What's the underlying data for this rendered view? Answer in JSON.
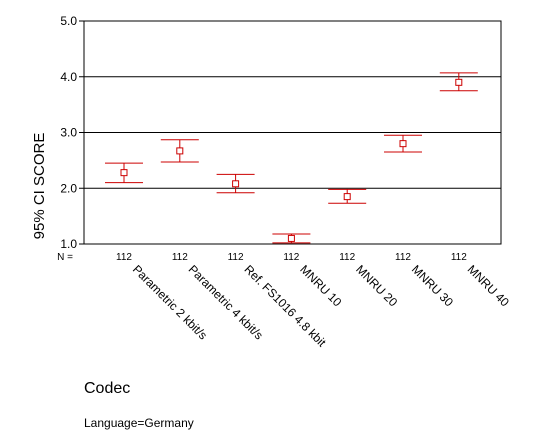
{
  "chart_data": {
    "type": "errorbar",
    "ylabel": "95% CI SCORE",
    "xlabel": "Codec",
    "ylim": [
      1.0,
      5.0
    ],
    "yticks": [
      "1.0",
      "2.0",
      "3.0",
      "4.0",
      "5.0"
    ],
    "gridlines": [
      2.0,
      3.0,
      4.0
    ],
    "n_label": "N =",
    "categories": [
      "Parametric 2 kbit/s",
      "Parametric 4 kbit/s",
      "Ref. FS1016 4.8 kbit",
      "MNRU 10",
      "MNRU 20",
      "MNRU 30",
      "MNRU 40"
    ],
    "n_values": [
      "112",
      "112",
      "112",
      "112",
      "112",
      "112",
      "112"
    ],
    "mean": [
      2.28,
      2.67,
      2.08,
      1.1,
      1.85,
      2.8,
      3.9
    ],
    "ci_low": [
      2.1,
      2.47,
      1.92,
      1.02,
      1.73,
      2.65,
      3.75
    ],
    "ci_high": [
      2.45,
      2.87,
      2.25,
      1.18,
      1.98,
      2.95,
      4.07
    ],
    "marker_color": "#cc0000",
    "grid": "horizontal major lines only"
  },
  "footer": {
    "codec_label": "Codec",
    "language_label": "Language=Germany"
  }
}
